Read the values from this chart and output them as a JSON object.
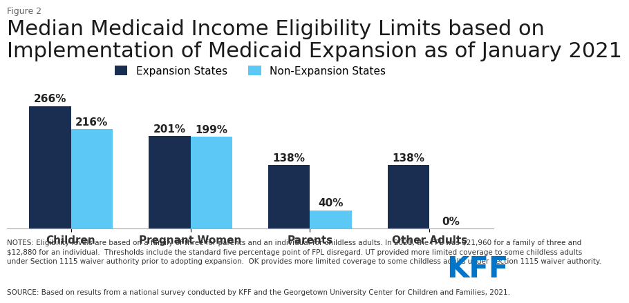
{
  "figure_label": "Figure 2",
  "title": "Median Medicaid Income Eligibility Limits based on\nImplementation of Medicaid Expansion as of January 2021",
  "categories": [
    "Children",
    "Pregnant Women",
    "Parents",
    "Other Adults"
  ],
  "expansion_values": [
    266,
    201,
    138,
    138
  ],
  "non_expansion_values": [
    216,
    199,
    40,
    0
  ],
  "expansion_label": "Expansion States",
  "non_expansion_label": "Non-Expansion States",
  "expansion_color": "#1a2e52",
  "non_expansion_color": "#5bc8f5",
  "bar_width": 0.35,
  "ylim": [
    0,
    310
  ],
  "background_color": "#ffffff",
  "notes_text": "NOTES: Eligibility levels are based on a family of three for parents and an individual for childless adults. In 2021, the FPL was $21,960 for a family of three and\n$12,880 for an individual.  Thresholds include the standard five percentage point of FPL disregard. UT provided more limited coverage to some childless adults\nunder Section 1115 waiver authority prior to adopting expansion.  OK provides more limited coverage to some childless adults under Section 1115 waiver authority.",
  "source_text": "SOURCE: Based on results from a national survey conducted by KFF and the Georgetown University Center for Children and Families, 2021.",
  "kff_color": "#0075c9",
  "title_fontsize": 22,
  "label_fontsize": 11,
  "tick_fontsize": 11,
  "legend_fontsize": 11,
  "note_fontsize": 7.5,
  "figure_label_fontsize": 9,
  "figure_label_color": "#666666"
}
